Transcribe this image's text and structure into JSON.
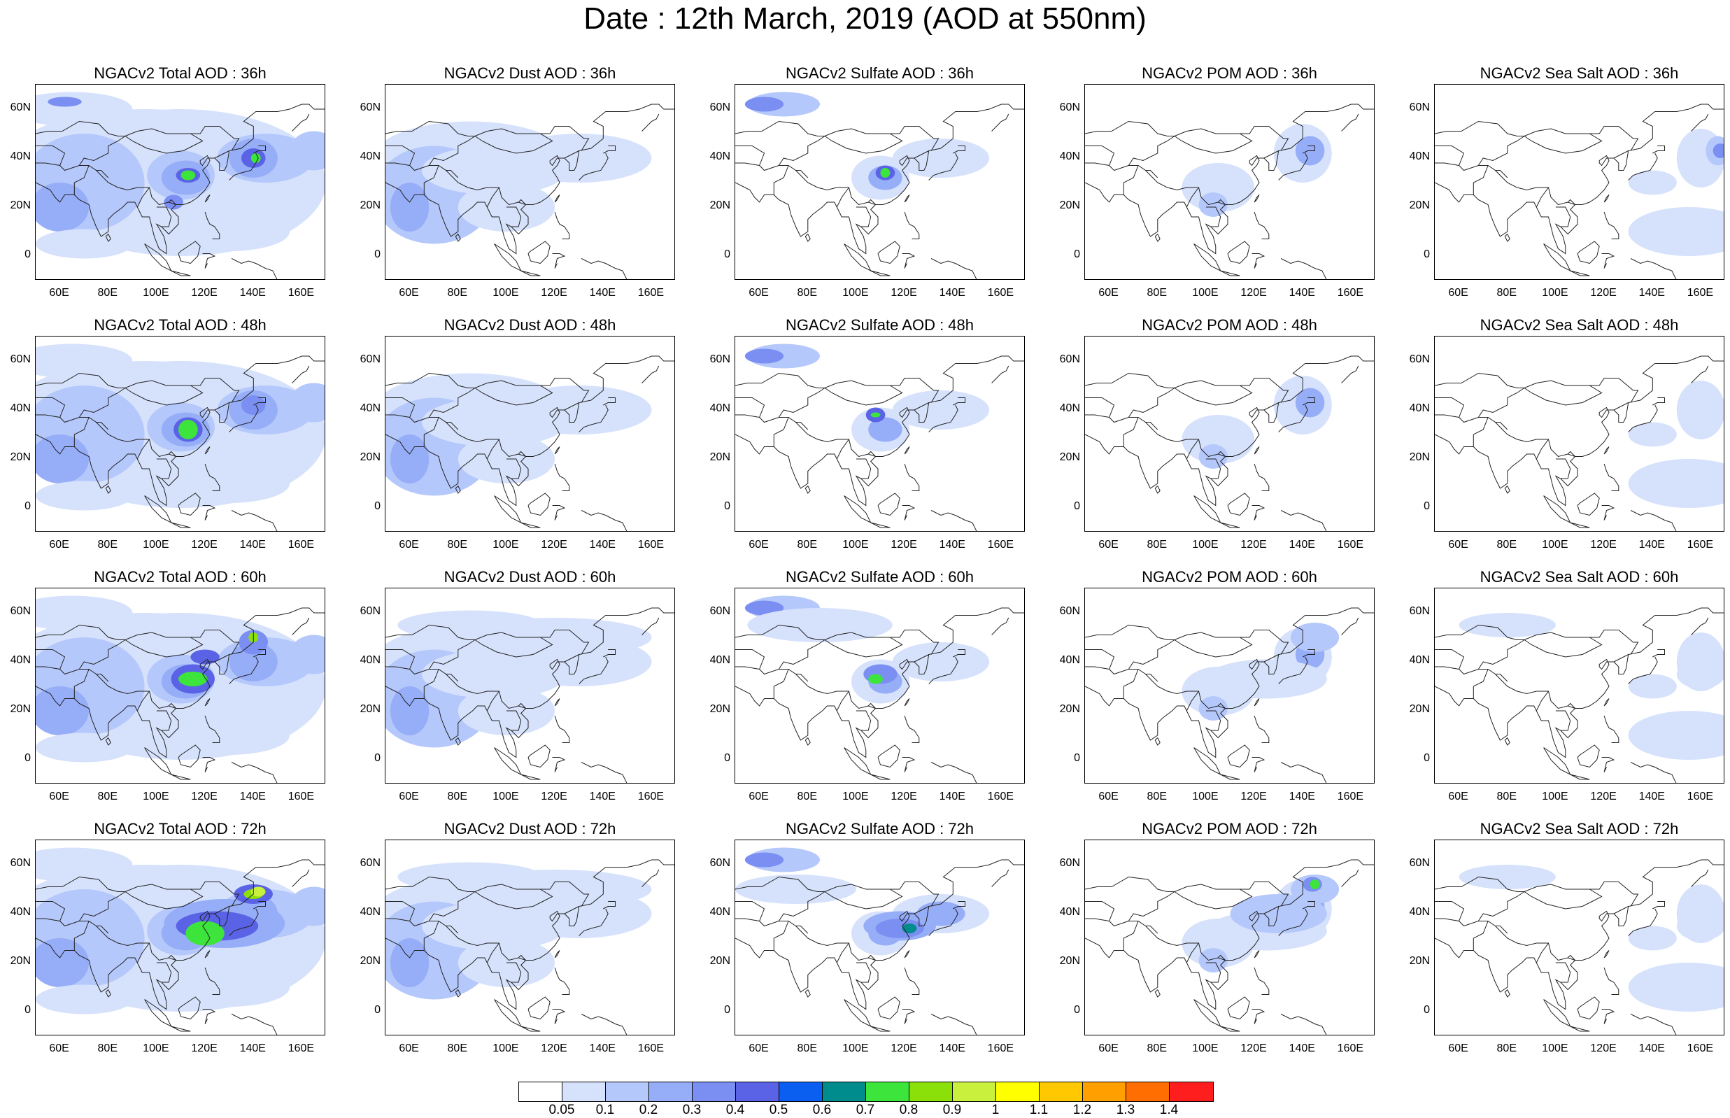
{
  "title": "Date : 12th March, 2019 (AOD at 550nm)",
  "lat_labels": [
    "60N",
    "40N",
    "20N",
    "0"
  ],
  "lon_labels": [
    "60E",
    "80E",
    "100E",
    "120E",
    "140E",
    "160E"
  ],
  "rows": [
    {
      "titles": [
        "NGACv2 Total AOD : 36h",
        "NGACv2 Dust AOD : 36h",
        "NGACv2 Sulfate AOD : 36h",
        "NGACv2 POM AOD : 36h",
        "NGACv2 Sea Salt AOD : 36h"
      ]
    },
    {
      "titles": [
        "NGACv2 Total AOD : 48h",
        "NGACv2 Dust AOD : 48h",
        "NGACv2 Sulfate AOD : 48h",
        "NGACv2 POM AOD : 48h",
        "NGACv2 Sea Salt AOD : 48h"
      ]
    },
    {
      "titles": [
        "NGACv2 Total AOD : 60h",
        "NGACv2 Dust AOD : 60h",
        "NGACv2 Sulfate AOD : 60h",
        "NGACv2 POM AOD : 60h",
        "NGACv2 Sea Salt AOD : 60h"
      ]
    },
    {
      "titles": [
        "NGACv2 Total AOD : 72h",
        "NGACv2 Dust AOD : 72h",
        "NGACv2 Sulfate AOD : 72h",
        "NGACv2 POM AOD : 72h",
        "NGACv2 Sea Salt  AOD : 72h"
      ]
    }
  ],
  "colorbar": {
    "labels": [
      "0.05",
      "0.1",
      "0.2",
      "0.3",
      "0.4",
      "0.5",
      "0.6",
      "0.7",
      "0.8",
      "0.9",
      "1",
      "1.1",
      "1.2",
      "1.3",
      "1.4"
    ],
    "colors": [
      "#ffffff",
      "#d6e2fc",
      "#b5c8fb",
      "#96adf8",
      "#7b8ff2",
      "#5a63e6",
      "#0a5ef0",
      "#008c8c",
      "#3ce43c",
      "#8ce00a",
      "#c8f03c",
      "#ffff00",
      "#ffc800",
      "#ffa000",
      "#ff6e00",
      "#ff1e1e"
    ]
  },
  "chart_data": {
    "type": "heatmap",
    "variable": "AOD at 550nm",
    "date": "12th March, 2019",
    "model": "NGACv2",
    "species": [
      "Total",
      "Dust",
      "Sulfate",
      "POM",
      "Sea Salt"
    ],
    "forecast_hours": [
      "36h",
      "48h",
      "60h",
      "72h"
    ],
    "lon_range": [
      50,
      170
    ],
    "lat_range": [
      -10,
      70
    ],
    "levels": [
      0.05,
      0.1,
      0.2,
      0.3,
      0.4,
      0.5,
      0.6,
      0.7,
      0.8,
      0.9,
      1,
      1.1,
      1.2,
      1.3,
      1.4
    ]
  }
}
